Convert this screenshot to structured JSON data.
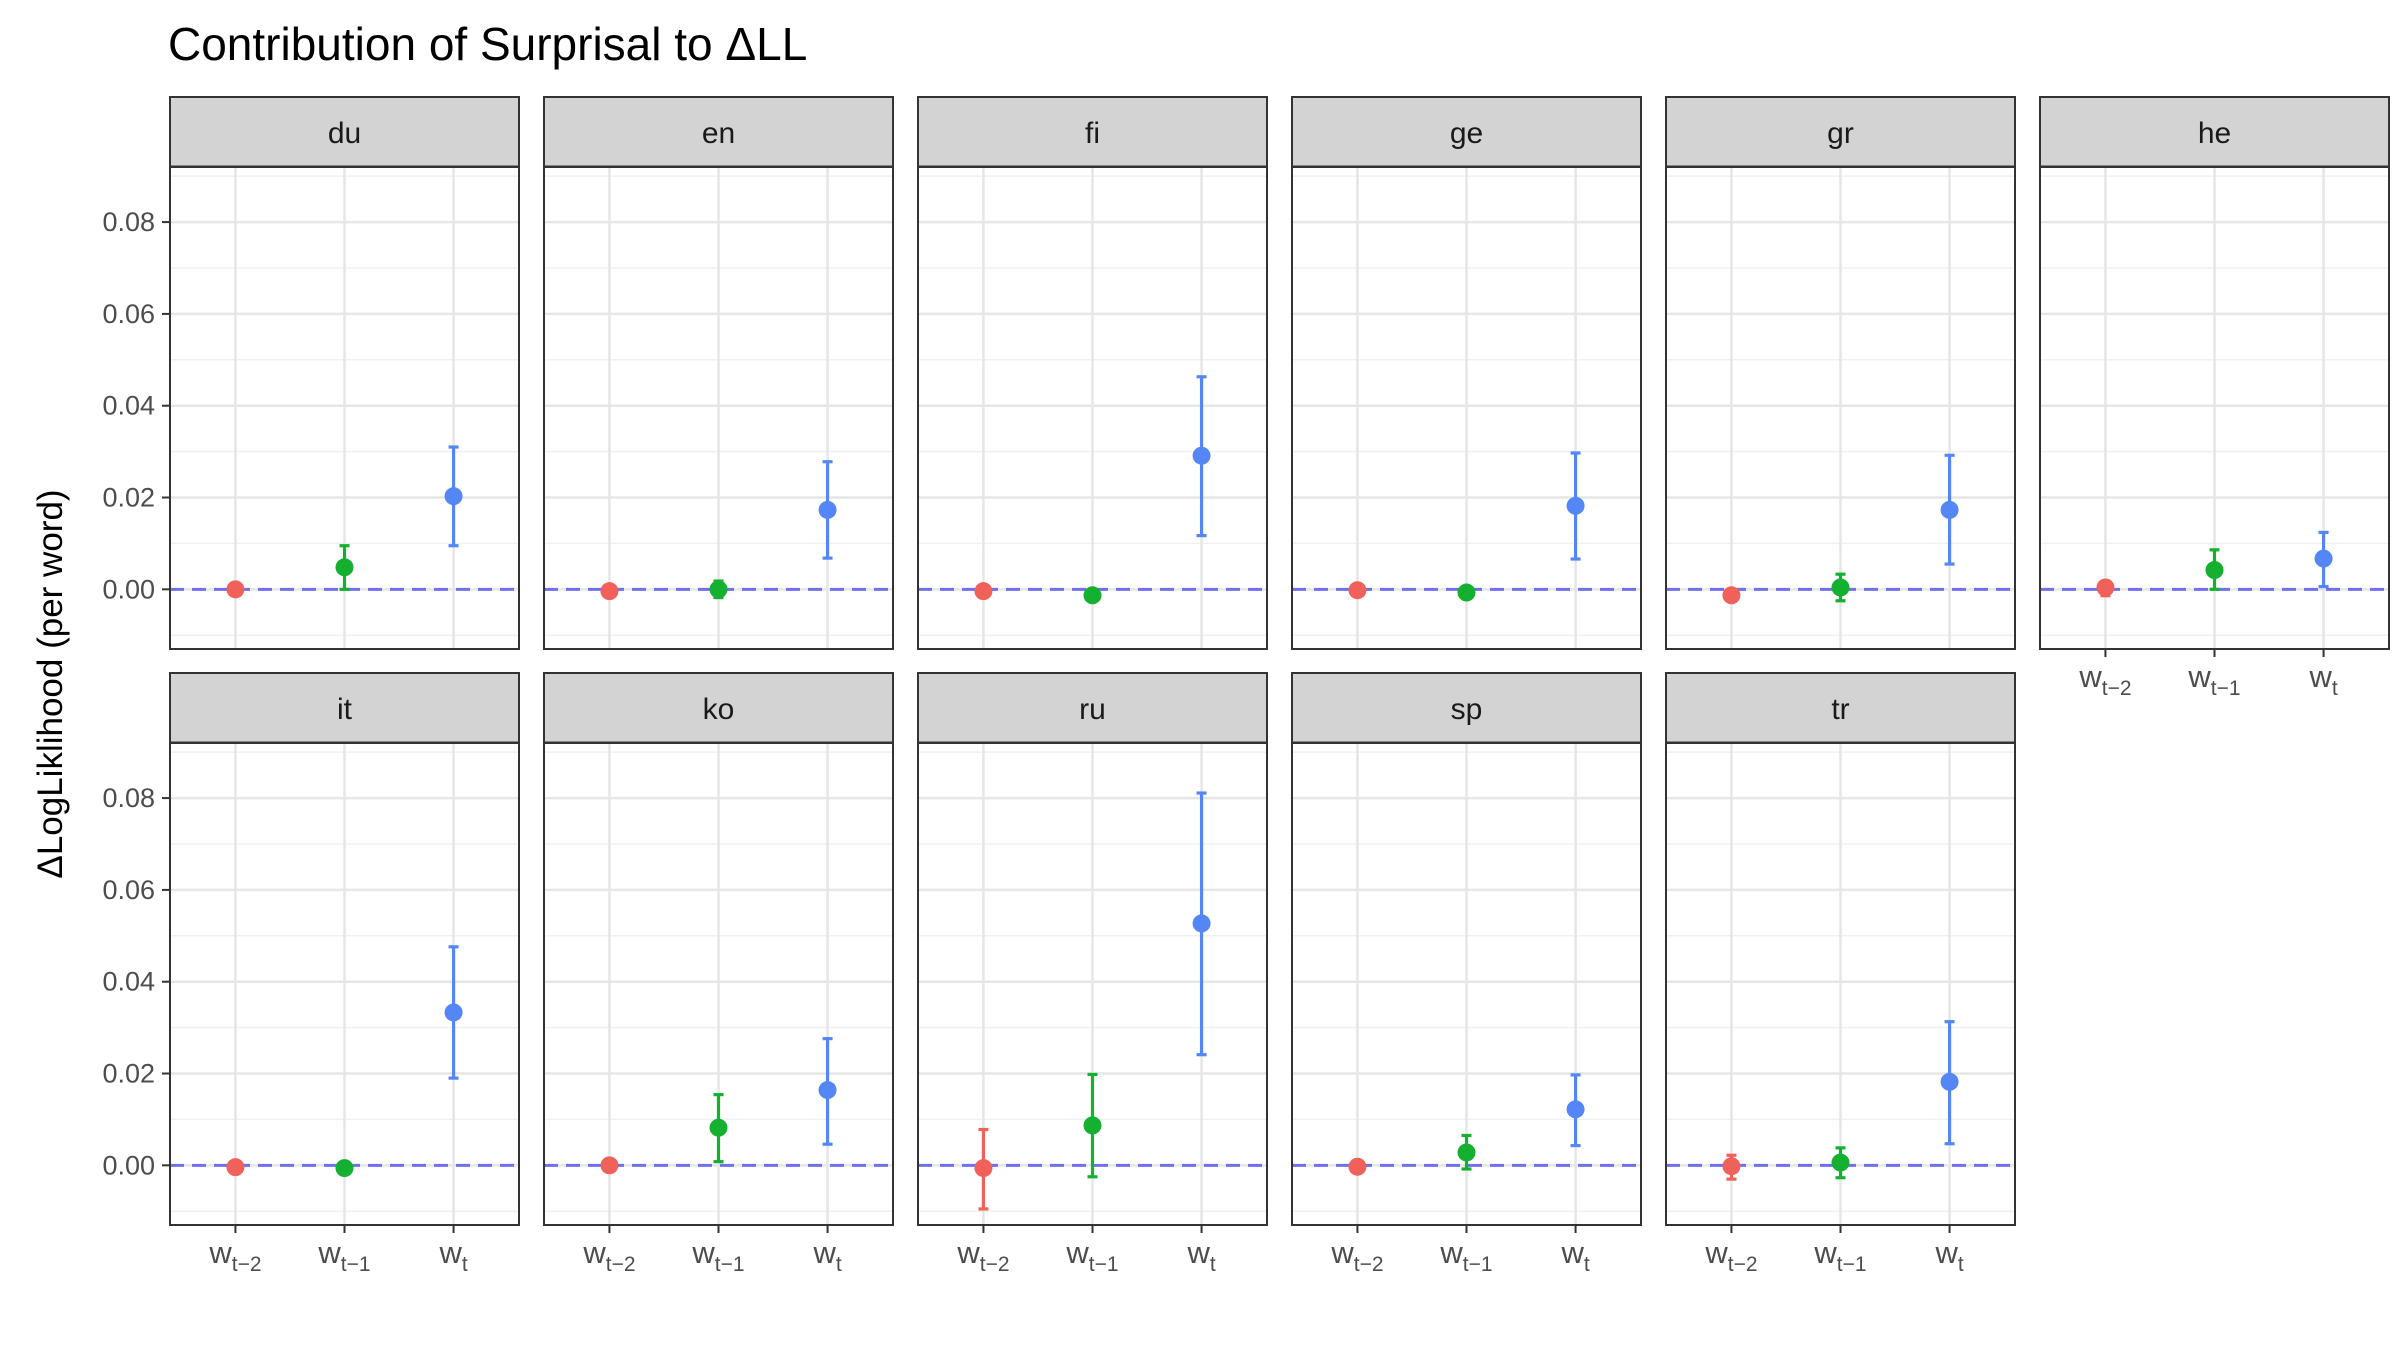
{
  "chart_data": {
    "type": "scatter",
    "title": "Contribution of Surprisal to ΔLL",
    "ylabel": "ΔLogLiklihood (per word)",
    "xlabel": "",
    "ylim": [
      -0.013,
      0.092
    ],
    "yticks": [
      "0.00",
      "0.02",
      "0.04",
      "0.06",
      "0.08"
    ],
    "ytick_values": [
      0,
      0.02,
      0.04,
      0.06,
      0.08
    ],
    "reference_line": {
      "y": 0,
      "style": "dashed",
      "color": "#6f6ff0"
    },
    "categories": [
      {
        "base": "w",
        "sub": "t−2"
      },
      {
        "base": "w",
        "sub": "t−1"
      },
      {
        "base": "w",
        "sub": "t"
      }
    ],
    "category_colors": [
      "#f0615a",
      "#15b02f",
      "#5586f6"
    ],
    "facet_order": [
      "du",
      "en",
      "fi",
      "ge",
      "gr",
      "he",
      "it",
      "ko",
      "ru",
      "sp",
      "tr"
    ],
    "panels": [
      {
        "name": "du",
        "points": [
          {
            "y": 0.0,
            "lo": 0.0,
            "hi": 0.0
          },
          {
            "y": 0.0048,
            "lo": 0.0,
            "hi": 0.0095
          },
          {
            "y": 0.0203,
            "lo": 0.0095,
            "hi": 0.031
          }
        ]
      },
      {
        "name": "en",
        "points": [
          {
            "y": -0.0004,
            "lo": -0.0004,
            "hi": -0.0004
          },
          {
            "y": 0.0,
            "lo": -0.0018,
            "hi": 0.0018
          },
          {
            "y": 0.0173,
            "lo": 0.0068,
            "hi": 0.0278
          }
        ]
      },
      {
        "name": "fi",
        "points": [
          {
            "y": -0.0004,
            "lo": -0.0004,
            "hi": -0.0004
          },
          {
            "y": -0.0013,
            "lo": -0.0013,
            "hi": -0.0013
          },
          {
            "y": 0.0291,
            "lo": 0.0117,
            "hi": 0.0463
          }
        ]
      },
      {
        "name": "ge",
        "points": [
          {
            "y": -0.0002,
            "lo": -0.0002,
            "hi": -0.0002
          },
          {
            "y": -0.0007,
            "lo": -0.0007,
            "hi": -0.0007
          },
          {
            "y": 0.0182,
            "lo": 0.0066,
            "hi": 0.0297
          }
        ]
      },
      {
        "name": "gr",
        "points": [
          {
            "y": -0.0013,
            "lo": -0.0013,
            "hi": -0.0013
          },
          {
            "y": 0.0004,
            "lo": -0.0025,
            "hi": 0.0033
          },
          {
            "y": 0.0173,
            "lo": 0.0055,
            "hi": 0.0292
          }
        ]
      },
      {
        "name": "he",
        "points": [
          {
            "y": 0.0004,
            "lo": -0.0014,
            "hi": 0.0016
          },
          {
            "y": 0.0042,
            "lo": 0.0,
            "hi": 0.0086
          },
          {
            "y": 0.0067,
            "lo": 0.0006,
            "hi": 0.0124
          }
        ]
      },
      {
        "name": "it",
        "points": [
          {
            "y": -0.0004,
            "lo": -0.0004,
            "hi": -0.0004
          },
          {
            "y": -0.0006,
            "lo": -0.0006,
            "hi": -0.0006
          },
          {
            "y": 0.0333,
            "lo": 0.019,
            "hi": 0.0476
          }
        ]
      },
      {
        "name": "ko",
        "points": [
          {
            "y": 0.0,
            "lo": 0.0,
            "hi": 0.0
          },
          {
            "y": 0.0082,
            "lo": 0.0008,
            "hi": 0.0154
          },
          {
            "y": 0.0164,
            "lo": 0.0046,
            "hi": 0.0276
          }
        ]
      },
      {
        "name": "ru",
        "points": [
          {
            "y": -0.0006,
            "lo": -0.0095,
            "hi": 0.0078
          },
          {
            "y": 0.0087,
            "lo": -0.0025,
            "hi": 0.0198
          },
          {
            "y": 0.0527,
            "lo": 0.0241,
            "hi": 0.0811
          }
        ]
      },
      {
        "name": "sp",
        "points": [
          {
            "y": -0.0003,
            "lo": -0.0003,
            "hi": -0.0003
          },
          {
            "y": 0.0028,
            "lo": -0.0008,
            "hi": 0.0065
          },
          {
            "y": 0.0122,
            "lo": 0.0043,
            "hi": 0.0197
          }
        ]
      },
      {
        "name": "tr",
        "points": [
          {
            "y": -0.0002,
            "lo": -0.003,
            "hi": 0.0022
          },
          {
            "y": 0.0006,
            "lo": -0.0027,
            "hi": 0.0038
          },
          {
            "y": 0.0182,
            "lo": 0.0047,
            "hi": 0.0313
          }
        ]
      }
    ]
  }
}
